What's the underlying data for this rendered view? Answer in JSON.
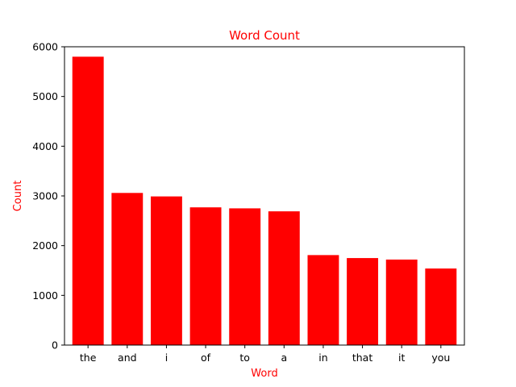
{
  "chart_data": {
    "type": "bar",
    "title": "Word Count",
    "xlabel": "Word",
    "ylabel": "Count",
    "categories": [
      "the",
      "and",
      "i",
      "of",
      "to",
      "a",
      "in",
      "that",
      "it",
      "you"
    ],
    "values": [
      5800,
      3060,
      2990,
      2770,
      2750,
      2690,
      1810,
      1750,
      1720,
      1540
    ],
    "ylim": [
      0,
      6000
    ],
    "yticks": [
      0,
      1000,
      2000,
      3000,
      4000,
      5000,
      6000
    ],
    "grid": false,
    "legend": "none"
  },
  "colors": {
    "bar": "#ff0000",
    "title": "#ff0000",
    "axis_label": "#ff0000",
    "axis": "#000000"
  }
}
